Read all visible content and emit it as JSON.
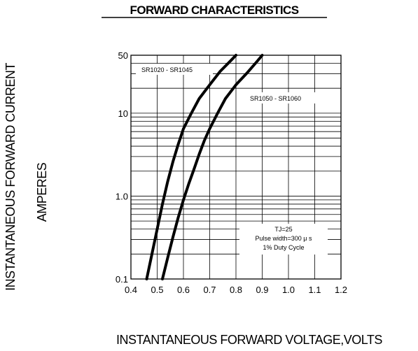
{
  "chart_data": {
    "type": "line",
    "title": "FORWARD CHARACTERISTICS",
    "xlabel": "INSTANTANEOUS FORWARD VOLTAGE,VOLTS",
    "ylabel_lines": [
      "INSTANTANEOUS FORWARD CURRENT",
      "AMPERES"
    ],
    "x_ticks": [
      "0.4",
      "0.5",
      "0.6",
      "0.7",
      "0.8",
      "0.9",
      "1.0",
      "1.1",
      "1.2"
    ],
    "y_ticks": [
      "0.1",
      "1.0",
      "10",
      "50"
    ],
    "xlim": [
      0.4,
      1.2
    ],
    "ylim": [
      0.1,
      50
    ],
    "yscale": "log",
    "grid": true,
    "series": [
      {
        "name": "SR1020 - SR1045",
        "points": [
          [
            0.46,
            0.1
          ],
          [
            0.48,
            0.2
          ],
          [
            0.5,
            0.4
          ],
          [
            0.52,
            0.8
          ],
          [
            0.54,
            1.5
          ],
          [
            0.56,
            2.6
          ],
          [
            0.58,
            4.2
          ],
          [
            0.6,
            6.5
          ],
          [
            0.63,
            10
          ],
          [
            0.66,
            15
          ],
          [
            0.7,
            22
          ],
          [
            0.74,
            32
          ],
          [
            0.78,
            43
          ],
          [
            0.8,
            50
          ]
        ]
      },
      {
        "name": "SR1050 - SR1060",
        "points": [
          [
            0.52,
            0.1
          ],
          [
            0.54,
            0.18
          ],
          [
            0.56,
            0.32
          ],
          [
            0.58,
            0.55
          ],
          [
            0.6,
            0.9
          ],
          [
            0.62,
            1.4
          ],
          [
            0.64,
            2.1
          ],
          [
            0.66,
            3.2
          ],
          [
            0.68,
            4.7
          ],
          [
            0.7,
            6.5
          ],
          [
            0.73,
            10
          ],
          [
            0.76,
            15
          ],
          [
            0.8,
            22
          ],
          [
            0.84,
            30
          ],
          [
            0.88,
            42
          ],
          [
            0.9,
            50
          ]
        ]
      }
    ],
    "annotation_lines": [
      "TJ=25",
      "Pulse width=300 μ s",
      "1% Duty Cycle"
    ]
  }
}
